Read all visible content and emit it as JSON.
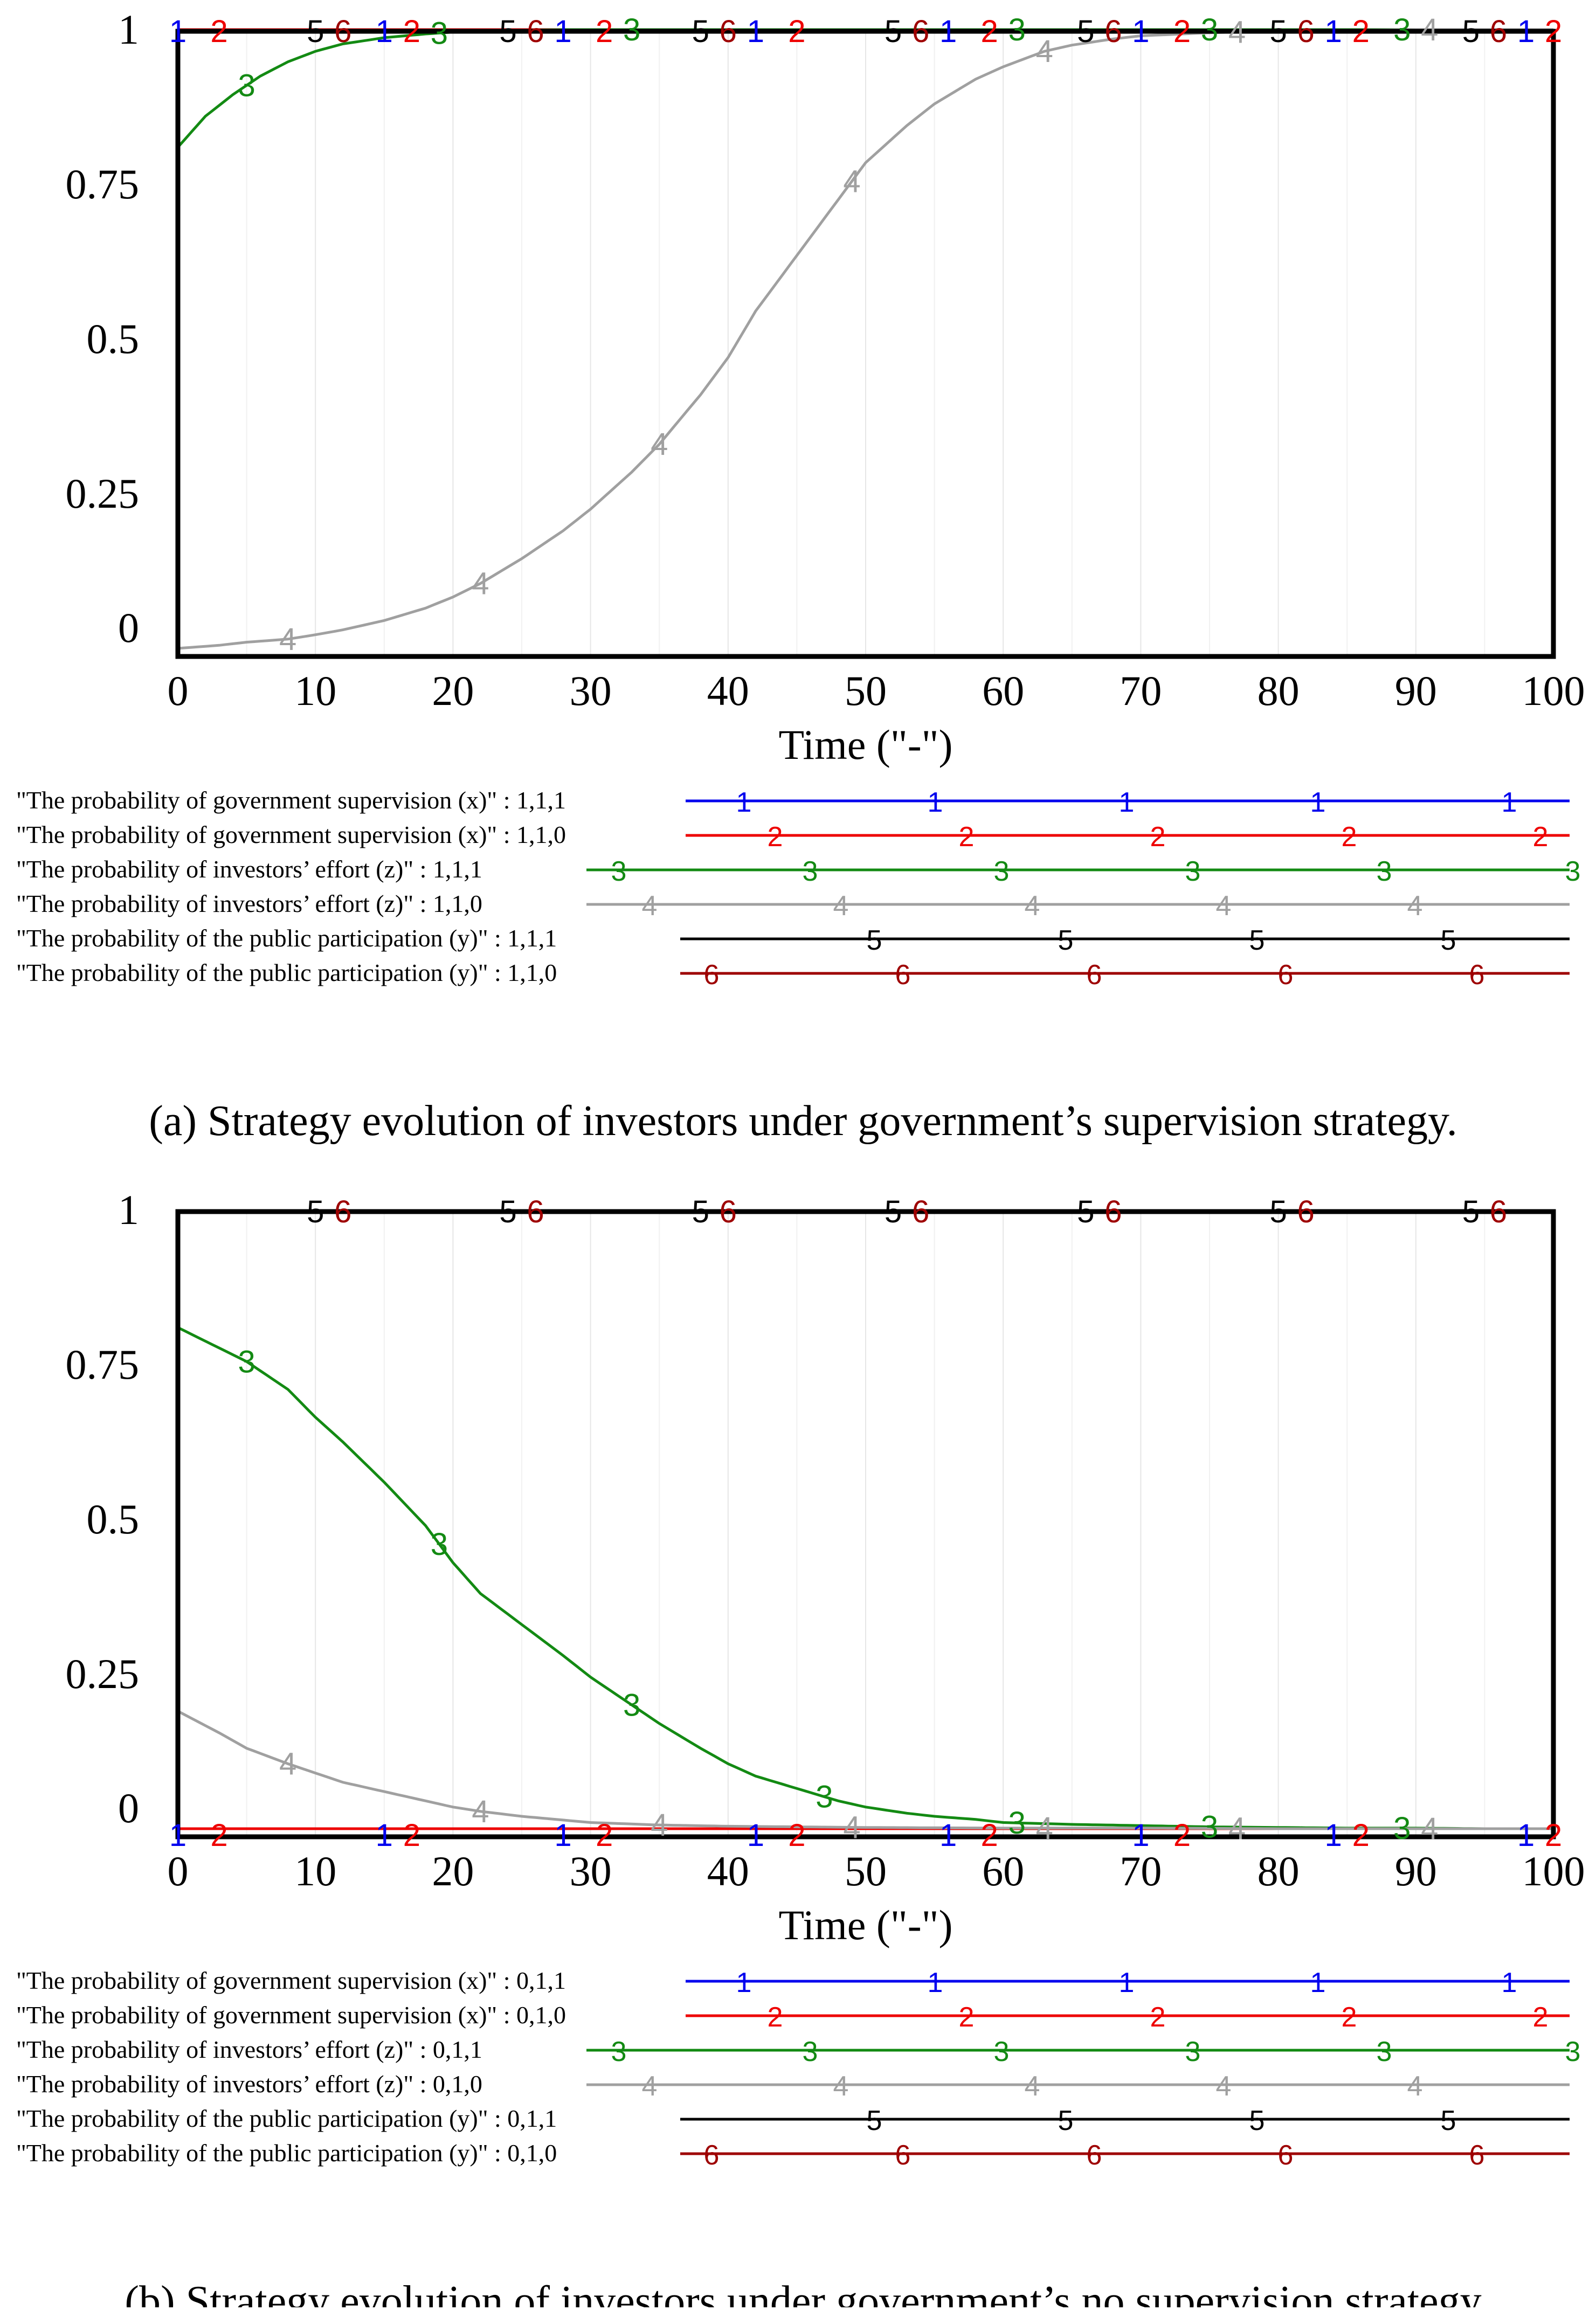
{
  "chart_data": [
    {
      "type": "line",
      "title": "",
      "xlabel": "Time (\"-\")",
      "ylabel": "",
      "xlim": [
        0,
        100
      ],
      "ylim": [
        0,
        1
      ],
      "grid": true,
      "x_ticks": [
        "0",
        "10",
        "20",
        "30",
        "40",
        "50",
        "60",
        "70",
        "80",
        "90",
        "100"
      ],
      "y_ticks": [
        "0",
        "0.25",
        "0.5",
        "0.75",
        "1"
      ],
      "caption": "(a) Strategy evolution of investors under government’s supervision strategy.",
      "series": [
        {
          "id": "1",
          "color": "#0000ee",
          "name": "\"The probability of government supervision (x)\" : 1,1,1",
          "x": [
            0,
            100
          ],
          "values": [
            1,
            1
          ],
          "marks_x": [
            0,
            15,
            28,
            42,
            56,
            70,
            84,
            98
          ]
        },
        {
          "id": "2",
          "color": "#ee0000",
          "name": "\"The probability of government supervision (x)\" : 1,1,0",
          "x": [
            0,
            100
          ],
          "values": [
            1,
            1
          ],
          "marks_x": [
            3,
            17,
            31,
            45,
            59,
            73,
            86,
            100
          ]
        },
        {
          "id": "3",
          "color": "#138a13",
          "name": "\"The probability of investors’ effort (z)\" : 1,1,1",
          "x": [
            0,
            2,
            4,
            6,
            8,
            10,
            12,
            15,
            18,
            20,
            22,
            25,
            28,
            30,
            100
          ],
          "values": [
            0.81,
            0.86,
            0.895,
            0.925,
            0.948,
            0.965,
            0.977,
            0.987,
            0.993,
            0.996,
            0.998,
            0.999,
            1,
            1,
            1
          ],
          "marks_x": [
            5,
            19,
            33,
            61,
            75,
            89
          ]
        },
        {
          "id": "4",
          "color": "#a0a0a0",
          "name": "\"The probability of investors’ effort (z)\" : 1,1,0",
          "x": [
            0,
            3,
            5,
            8,
            10,
            12,
            15,
            18,
            20,
            22,
            25,
            28,
            30,
            33,
            35,
            38,
            40,
            42,
            45,
            48,
            50,
            53,
            55,
            58,
            60,
            63,
            65,
            68,
            70,
            75,
            80,
            85,
            90,
            95,
            100
          ],
          "values": [
            0.0,
            0.005,
            0.01,
            0.015,
            0.022,
            0.03,
            0.045,
            0.065,
            0.083,
            0.105,
            0.145,
            0.19,
            0.225,
            0.285,
            0.33,
            0.41,
            0.47,
            0.545,
            0.635,
            0.725,
            0.785,
            0.845,
            0.88,
            0.92,
            0.94,
            0.965,
            0.975,
            0.985,
            0.99,
            0.995,
            0.998,
            0.999,
            1,
            1,
            1
          ],
          "marks_x": [
            8,
            22,
            35,
            49,
            63,
            77,
            91
          ]
        },
        {
          "id": "5",
          "color": "#000000",
          "name": "\"The probability of the public participation (y)\" : 1,1,1",
          "x": [
            0,
            100
          ],
          "values": [
            1,
            1
          ],
          "marks_x": [
            10,
            24,
            38,
            52,
            66,
            80,
            94
          ]
        },
        {
          "id": "6",
          "color": "#9e0000",
          "name": "\"The probability of the public participation (y)\" : 1,1,0",
          "x": [
            0,
            100
          ],
          "values": [
            1,
            1
          ],
          "marks_x": [
            12,
            26,
            40,
            54,
            68,
            82,
            96
          ]
        }
      ]
    },
    {
      "type": "line",
      "title": "",
      "xlabel": "Time (\"-\")",
      "ylabel": "",
      "xlim": [
        0,
        100
      ],
      "ylim": [
        0,
        1
      ],
      "grid": true,
      "x_ticks": [
        "0",
        "10",
        "20",
        "30",
        "40",
        "50",
        "60",
        "70",
        "80",
        "90",
        "100"
      ],
      "y_ticks": [
        "0",
        "0.25",
        "0.5",
        "0.75",
        "1"
      ],
      "caption": "(b) Strategy evolution of investors under government’s no supervision strategy",
      "series": [
        {
          "id": "1",
          "color": "#0000ee",
          "name": "\"The probability of government supervision (x)\" : 0,1,1",
          "x": [
            0,
            100
          ],
          "values": [
            0,
            0
          ],
          "marks_x": [
            0,
            15,
            28,
            42,
            56,
            70,
            84,
            98
          ]
        },
        {
          "id": "2",
          "color": "#ee0000",
          "name": "\"The probability of government supervision (x)\" : 0,1,0",
          "x": [
            0,
            100
          ],
          "values": [
            0,
            0
          ],
          "marks_x": [
            3,
            17,
            31,
            45,
            59,
            73,
            86,
            100
          ]
        },
        {
          "id": "3",
          "color": "#138a13",
          "name": "\"The probability of investors’ effort (z)\" : 0,1,1",
          "x": [
            0,
            5,
            8,
            10,
            12,
            15,
            18,
            20,
            22,
            25,
            28,
            30,
            33,
            35,
            38,
            40,
            42,
            45,
            48,
            50,
            53,
            55,
            58,
            60,
            65,
            70,
            75,
            80,
            85,
            90,
            95,
            100
          ],
          "values": [
            0.81,
            0.755,
            0.71,
            0.665,
            0.625,
            0.56,
            0.49,
            0.43,
            0.38,
            0.33,
            0.28,
            0.245,
            0.2,
            0.17,
            0.13,
            0.105,
            0.085,
            0.065,
            0.045,
            0.035,
            0.025,
            0.02,
            0.015,
            0.01,
            0.007,
            0.005,
            0.003,
            0.002,
            0.001,
            0.001,
            0.0,
            0.0
          ],
          "marks_x": [
            5,
            19,
            33,
            47,
            61,
            75,
            89
          ]
        },
        {
          "id": "4",
          "color": "#a0a0a0",
          "name": "\"The probability of investors’ effort (z)\" : 0,1,0",
          "x": [
            0,
            3,
            5,
            8,
            10,
            12,
            15,
            18,
            20,
            22,
            25,
            28,
            30,
            35,
            40,
            45,
            50,
            60,
            70,
            80,
            90,
            100
          ],
          "values": [
            0.19,
            0.155,
            0.13,
            0.105,
            0.09,
            0.075,
            0.06,
            0.045,
            0.035,
            0.028,
            0.02,
            0.014,
            0.01,
            0.006,
            0.004,
            0.003,
            0.002,
            0.001,
            0.001,
            0,
            0,
            0
          ],
          "marks_x": [
            8,
            22,
            35,
            49,
            63,
            77,
            91
          ]
        },
        {
          "id": "5",
          "color": "#000000",
          "name": "\"The probability of the public participation (y)\" : 0,1,1",
          "x": [
            0,
            100
          ],
          "values": [
            1,
            1
          ],
          "marks_x": [
            10,
            24,
            38,
            52,
            66,
            80,
            94
          ]
        },
        {
          "id": "6",
          "color": "#9e0000",
          "name": "\"The probability of the public participation (y)\" : 0,1,0",
          "x": [
            0,
            100
          ],
          "values": [
            1,
            1
          ],
          "marks_x": [
            12,
            26,
            40,
            54,
            68,
            82,
            96
          ]
        }
      ]
    }
  ]
}
